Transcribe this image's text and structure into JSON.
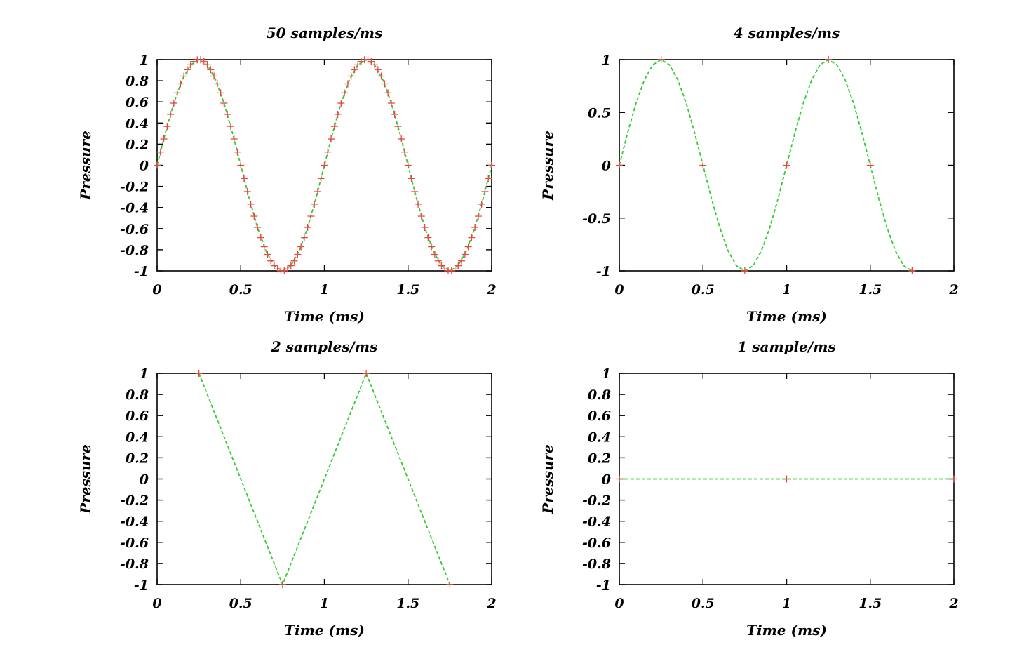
{
  "chart_data": [
    {
      "type": "line",
      "title": "50 samples/ms",
      "xlabel": "Time (ms)",
      "ylabel": "Pressure",
      "xlim": [
        0,
        2
      ],
      "ylim": [
        -1,
        1
      ],
      "xticks": [
        "0",
        "0.5",
        "1",
        "1.5",
        "2"
      ],
      "yticks": [
        "1",
        "0.8",
        "0.6",
        "0.4",
        "0.2",
        "0",
        "-0.2",
        "-0.4",
        "-0.6",
        "-0.8",
        "-1"
      ],
      "grid": false,
      "series": [
        {
          "kind": "line",
          "color": "#33cc33",
          "dashed": true,
          "points": [
            [
              0,
              0
            ],
            [
              0.05,
              0.309
            ],
            [
              0.1,
              0.588
            ],
            [
              0.15,
              0.809
            ],
            [
              0.2,
              0.951
            ],
            [
              0.25,
              1
            ],
            [
              0.3,
              0.951
            ],
            [
              0.35,
              0.809
            ],
            [
              0.4,
              0.588
            ],
            [
              0.45,
              0.309
            ],
            [
              0.5,
              0
            ],
            [
              0.55,
              -0.309
            ],
            [
              0.6,
              -0.588
            ],
            [
              0.65,
              -0.809
            ],
            [
              0.7,
              -0.951
            ],
            [
              0.75,
              -1
            ],
            [
              0.8,
              -0.951
            ],
            [
              0.85,
              -0.809
            ],
            [
              0.9,
              -0.588
            ],
            [
              0.95,
              -0.309
            ],
            [
              1,
              0
            ],
            [
              1.05,
              0.309
            ],
            [
              1.1,
              0.588
            ],
            [
              1.15,
              0.809
            ],
            [
              1.2,
              0.951
            ],
            [
              1.25,
              1
            ],
            [
              1.3,
              0.951
            ],
            [
              1.35,
              0.809
            ],
            [
              1.4,
              0.588
            ],
            [
              1.45,
              0.309
            ],
            [
              1.5,
              0
            ],
            [
              1.55,
              -0.309
            ],
            [
              1.6,
              -0.588
            ],
            [
              1.65,
              -0.809
            ],
            [
              1.7,
              -0.951
            ],
            [
              1.75,
              -1
            ],
            [
              1.8,
              -0.951
            ],
            [
              1.85,
              -0.809
            ],
            [
              1.9,
              -0.588
            ],
            [
              1.95,
              -0.309
            ],
            [
              2,
              0
            ]
          ]
        },
        {
          "kind": "points",
          "color": "#ee4444",
          "marker": "+",
          "points": [
            [
              0,
              0
            ],
            [
              0.02,
              0.125
            ],
            [
              0.04,
              0.249
            ],
            [
              0.06,
              0.368
            ],
            [
              0.08,
              0.482
            ],
            [
              0.1,
              0.588
            ],
            [
              0.12,
              0.685
            ],
            [
              0.14,
              0.771
            ],
            [
              0.16,
              0.844
            ],
            [
              0.18,
              0.905
            ],
            [
              0.2,
              0.951
            ],
            [
              0.22,
              0.982
            ],
            [
              0.24,
              0.998
            ],
            [
              0.26,
              0.998
            ],
            [
              0.28,
              0.982
            ],
            [
              0.3,
              0.951
            ],
            [
              0.32,
              0.905
            ],
            [
              0.34,
              0.844
            ],
            [
              0.36,
              0.771
            ],
            [
              0.38,
              0.685
            ],
            [
              0.4,
              0.588
            ],
            [
              0.42,
              0.482
            ],
            [
              0.44,
              0.368
            ],
            [
              0.46,
              0.249
            ],
            [
              0.48,
              0.125
            ],
            [
              0.5,
              0
            ],
            [
              0.52,
              -0.125
            ],
            [
              0.54,
              -0.249
            ],
            [
              0.56,
              -0.368
            ],
            [
              0.58,
              -0.482
            ],
            [
              0.6,
              -0.588
            ],
            [
              0.62,
              -0.685
            ],
            [
              0.64,
              -0.771
            ],
            [
              0.66,
              -0.844
            ],
            [
              0.68,
              -0.905
            ],
            [
              0.7,
              -0.951
            ],
            [
              0.72,
              -0.982
            ],
            [
              0.74,
              -0.998
            ],
            [
              0.76,
              -0.998
            ],
            [
              0.78,
              -0.982
            ],
            [
              0.8,
              -0.951
            ],
            [
              0.82,
              -0.905
            ],
            [
              0.84,
              -0.844
            ],
            [
              0.86,
              -0.771
            ],
            [
              0.88,
              -0.685
            ],
            [
              0.9,
              -0.588
            ],
            [
              0.92,
              -0.482
            ],
            [
              0.94,
              -0.368
            ],
            [
              0.96,
              -0.249
            ],
            [
              0.98,
              -0.125
            ],
            [
              1,
              0
            ],
            [
              1.02,
              0.125
            ],
            [
              1.04,
              0.249
            ],
            [
              1.06,
              0.368
            ],
            [
              1.08,
              0.482
            ],
            [
              1.1,
              0.588
            ],
            [
              1.12,
              0.685
            ],
            [
              1.14,
              0.771
            ],
            [
              1.16,
              0.844
            ],
            [
              1.18,
              0.905
            ],
            [
              1.2,
              0.951
            ],
            [
              1.22,
              0.982
            ],
            [
              1.24,
              0.998
            ],
            [
              1.26,
              0.998
            ],
            [
              1.28,
              0.982
            ],
            [
              1.3,
              0.951
            ],
            [
              1.32,
              0.905
            ],
            [
              1.34,
              0.844
            ],
            [
              1.36,
              0.771
            ],
            [
              1.38,
              0.685
            ],
            [
              1.4,
              0.588
            ],
            [
              1.42,
              0.482
            ],
            [
              1.44,
              0.368
            ],
            [
              1.46,
              0.249
            ],
            [
              1.48,
              0.125
            ],
            [
              1.5,
              0
            ],
            [
              1.52,
              -0.125
            ],
            [
              1.54,
              -0.249
            ],
            [
              1.56,
              -0.368
            ],
            [
              1.58,
              -0.482
            ],
            [
              1.6,
              -0.588
            ],
            [
              1.62,
              -0.685
            ],
            [
              1.64,
              -0.771
            ],
            [
              1.66,
              -0.844
            ],
            [
              1.68,
              -0.905
            ],
            [
              1.7,
              -0.951
            ],
            [
              1.72,
              -0.982
            ],
            [
              1.74,
              -0.998
            ],
            [
              1.76,
              -0.998
            ],
            [
              1.78,
              -0.982
            ],
            [
              1.8,
              -0.951
            ],
            [
              1.82,
              -0.905
            ],
            [
              1.84,
              -0.844
            ],
            [
              1.86,
              -0.771
            ],
            [
              1.88,
              -0.685
            ],
            [
              1.9,
              -0.588
            ],
            [
              1.92,
              -0.482
            ],
            [
              1.94,
              -0.368
            ],
            [
              1.96,
              -0.249
            ],
            [
              1.98,
              -0.125
            ],
            [
              2,
              0
            ]
          ]
        }
      ]
    },
    {
      "type": "line",
      "title": "4 samples/ms",
      "xlabel": "Time (ms)",
      "ylabel": "Pressure",
      "xlim": [
        0,
        2
      ],
      "ylim": [
        -1,
        1
      ],
      "xticks": [
        "0",
        "0.5",
        "1",
        "1.5",
        "2"
      ],
      "yticks": [
        "1",
        "0.5",
        "0",
        "-0.5",
        "-1"
      ],
      "grid": false,
      "series": [
        {
          "kind": "line",
          "color": "#33cc33",
          "dashed": true,
          "points": [
            [
              0,
              0
            ],
            [
              0.05,
              0.309
            ],
            [
              0.1,
              0.588
            ],
            [
              0.15,
              0.809
            ],
            [
              0.2,
              0.951
            ],
            [
              0.25,
              1
            ],
            [
              0.3,
              0.951
            ],
            [
              0.35,
              0.809
            ],
            [
              0.4,
              0.588
            ],
            [
              0.45,
              0.309
            ],
            [
              0.5,
              0
            ],
            [
              0.55,
              -0.309
            ],
            [
              0.6,
              -0.588
            ],
            [
              0.65,
              -0.809
            ],
            [
              0.7,
              -0.951
            ],
            [
              0.75,
              -1
            ],
            [
              0.8,
              -0.951
            ],
            [
              0.85,
              -0.809
            ],
            [
              0.9,
              -0.588
            ],
            [
              0.95,
              -0.309
            ],
            [
              1,
              0
            ],
            [
              1.05,
              0.309
            ],
            [
              1.1,
              0.588
            ],
            [
              1.15,
              0.809
            ],
            [
              1.2,
              0.951
            ],
            [
              1.25,
              1
            ],
            [
              1.3,
              0.951
            ],
            [
              1.35,
              0.809
            ],
            [
              1.4,
              0.588
            ],
            [
              1.45,
              0.309
            ],
            [
              1.5,
              0
            ],
            [
              1.55,
              -0.309
            ],
            [
              1.6,
              -0.588
            ],
            [
              1.65,
              -0.809
            ],
            [
              1.7,
              -0.951
            ],
            [
              1.75,
              -1
            ]
          ]
        },
        {
          "kind": "points",
          "color": "#ee4444",
          "marker": "+",
          "points": [
            [
              0,
              0
            ],
            [
              0.25,
              1
            ],
            [
              0.5,
              0
            ],
            [
              0.75,
              -1
            ],
            [
              1,
              0
            ],
            [
              1.25,
              1
            ],
            [
              1.5,
              0
            ],
            [
              1.75,
              -1
            ]
          ]
        }
      ]
    },
    {
      "type": "line",
      "title": "2 samples/ms",
      "xlabel": "Time (ms)",
      "ylabel": "Pressure",
      "xlim": [
        0,
        2
      ],
      "ylim": [
        -1,
        1
      ],
      "xticks": [
        "0",
        "0.5",
        "1",
        "1.5",
        "2"
      ],
      "yticks": [
        "1",
        "0.8",
        "0.6",
        "0.4",
        "0.2",
        "0",
        "-0.2",
        "-0.4",
        "-0.6",
        "-0.8",
        "-1"
      ],
      "grid": false,
      "series": [
        {
          "kind": "line",
          "color": "#33cc33",
          "dashed": true,
          "points": [
            [
              0.25,
              1
            ],
            [
              0.75,
              -1
            ],
            [
              1.25,
              1
            ],
            [
              1.75,
              -1
            ]
          ]
        },
        {
          "kind": "points",
          "color": "#ee4444",
          "marker": "+",
          "points": [
            [
              0.25,
              1
            ],
            [
              0.75,
              -1
            ],
            [
              1.25,
              1
            ],
            [
              1.75,
              -1
            ]
          ]
        }
      ]
    },
    {
      "type": "line",
      "title": "1 sample/ms",
      "xlabel": "Time (ms)",
      "ylabel": "Pressure",
      "xlim": [
        0,
        2
      ],
      "ylim": [
        -1,
        1
      ],
      "xticks": [
        "0",
        "0.5",
        "1",
        "1.5",
        "2"
      ],
      "yticks": [
        "1",
        "0.8",
        "0.6",
        "0.4",
        "0.2",
        "0",
        "-0.2",
        "-0.4",
        "-0.6",
        "-0.8",
        "-1"
      ],
      "grid": false,
      "series": [
        {
          "kind": "line",
          "color": "#33cc33",
          "dashed": true,
          "points": [
            [
              0,
              0
            ],
            [
              1,
              0
            ],
            [
              2,
              0
            ]
          ]
        },
        {
          "kind": "points",
          "color": "#ee4444",
          "marker": "+",
          "points": [
            [
              0,
              0
            ],
            [
              1,
              0
            ],
            [
              2,
              0
            ]
          ]
        }
      ]
    }
  ]
}
